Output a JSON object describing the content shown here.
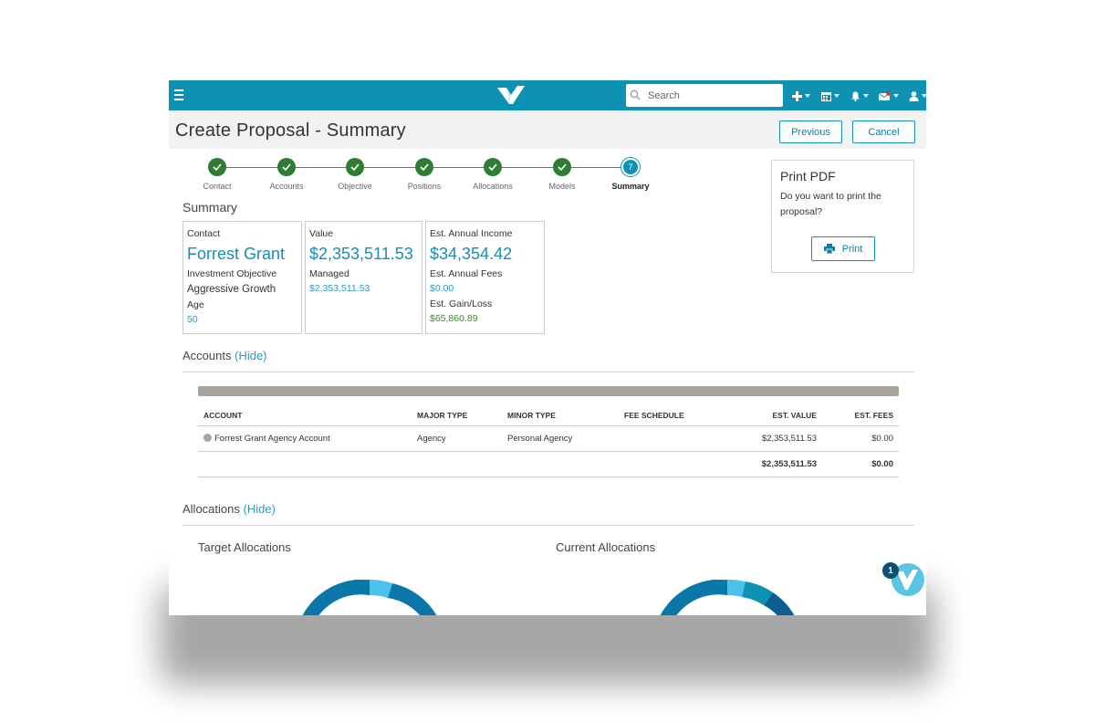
{
  "topbar": {
    "search_placeholder": "Search",
    "icons": [
      "menu-icon",
      "logo",
      "search-icon",
      "plus-icon",
      "calendar-icon",
      "bell-icon",
      "mail-icon",
      "user-icon"
    ],
    "brand_color": "#0d92b4"
  },
  "header": {
    "title": "Create Proposal - Summary",
    "previous_label": "Previous",
    "cancel_label": "Cancel"
  },
  "stepper": {
    "steps": [
      {
        "label": "Contact",
        "state": "complete"
      },
      {
        "label": "Accounts",
        "state": "complete"
      },
      {
        "label": "Objective",
        "state": "complete"
      },
      {
        "label": "Positions",
        "state": "complete"
      },
      {
        "label": "Allocations",
        "state": "complete"
      },
      {
        "label": "Models",
        "state": "complete"
      },
      {
        "label": "Summary",
        "state": "active",
        "number": "7"
      }
    ]
  },
  "summary": {
    "title": "Summary",
    "contact_card": {
      "label": "Contact",
      "name": "Forrest Grant",
      "objective_label": "Investment Objective",
      "objective_value": "Aggressive Growth",
      "age_label": "Age",
      "age_value": "50"
    },
    "value_card": {
      "label": "Value",
      "value": "$2,353,511.53",
      "managed_label": "Managed",
      "managed_value": "$2,353,511.53"
    },
    "income_card": {
      "label": "Est. Annual Income",
      "value": "$34,354.42",
      "fees_label": "Est. Annual Fees",
      "fees_value": "$0.00",
      "gain_label": "Est. Gain/Loss",
      "gain_value": "$65,860.89"
    }
  },
  "print_panel": {
    "title": "Print PDF",
    "question": "Do you want to print the proposal?",
    "print_label": "Print"
  },
  "accounts": {
    "title": "Accounts",
    "hide_label": "(Hide)",
    "columns": [
      "ACCOUNT",
      "MAJOR TYPE",
      "MINOR TYPE",
      "FEE SCHEDULE",
      "EST. VALUE",
      "EST. FEES"
    ],
    "rows": [
      {
        "account": "Forrest Grant Agency Account",
        "major": "Agency",
        "minor": "Personal Agency",
        "fee_schedule": "",
        "value": "$2,353,511.53",
        "fees": "$0.00"
      }
    ],
    "total_value": "$2,353,511.53",
    "total_fees": "$0.00"
  },
  "allocations": {
    "title": "Allocations",
    "hide_label": "(Hide)",
    "target_title": "Target Allocations",
    "current_title": "Current Allocations"
  },
  "chat_badge": {
    "count": "1"
  }
}
